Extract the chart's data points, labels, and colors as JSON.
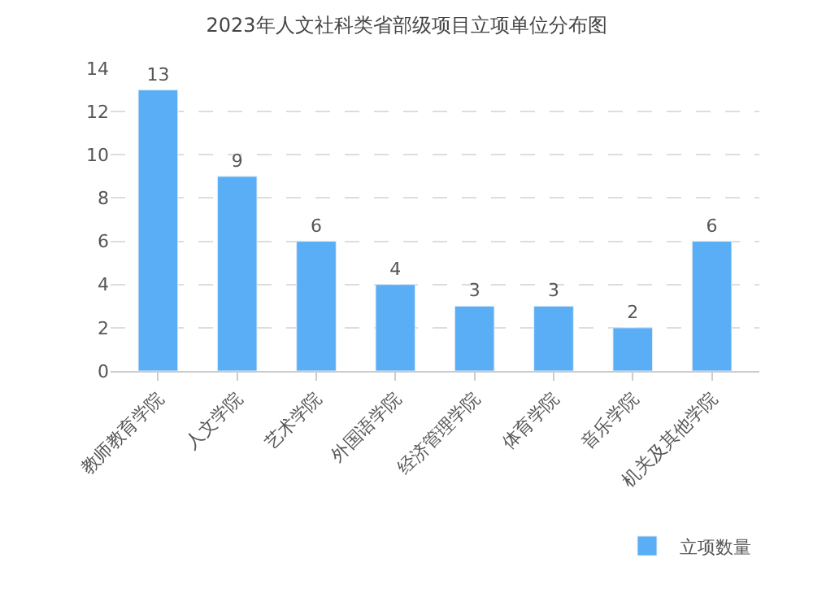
{
  "chart_data": {
    "type": "bar",
    "title": "2023年人文社科类省部级项目立项单位分布图",
    "categories": [
      "教师教育学院",
      "人文学院",
      "艺术学院",
      "外国语学院",
      "经济管理学院",
      "体育学院",
      "音乐学院",
      "机关及其他学院"
    ],
    "series": [
      {
        "name": "立项数量",
        "color": "#5aaef5",
        "values": [
          13,
          9,
          6,
          4,
          3,
          3,
          2,
          6
        ]
      }
    ],
    "ylim": [
      0,
      14
    ],
    "yticks": [
      0,
      2,
      4,
      6,
      8,
      10,
      12,
      14
    ],
    "grid": "y",
    "data_labels": true,
    "legend": "bottom right"
  }
}
